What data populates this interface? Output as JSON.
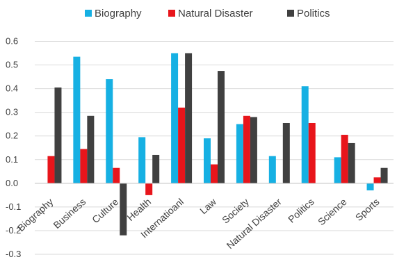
{
  "chart_data": {
    "type": "bar",
    "title": "",
    "xlabel": "",
    "ylabel": "",
    "categories": [
      "Biography",
      "Business",
      "Culture",
      "Health",
      "Internatioanl",
      "Law",
      "Society",
      "Natural Disaster",
      "Politics",
      "Science",
      "Sports"
    ],
    "series": [
      {
        "name": "Biography",
        "color": "#16b0e3",
        "values": [
          0.0,
          0.535,
          0.44,
          0.195,
          0.55,
          0.19,
          0.25,
          0.115,
          0.41,
          0.11,
          -0.03
        ]
      },
      {
        "name": "Natural Disaster",
        "color": "#e8151b",
        "values": [
          0.115,
          0.145,
          0.065,
          -0.05,
          0.32,
          0.08,
          0.285,
          0.0,
          0.255,
          0.205,
          0.025
        ]
      },
      {
        "name": "Politics",
        "color": "#404040",
        "values": [
          0.405,
          0.285,
          -0.22,
          0.12,
          0.55,
          0.475,
          0.28,
          0.255,
          0.0,
          0.17,
          0.065
        ]
      }
    ],
    "ylim": [
      -0.3,
      0.6
    ],
    "yticks": [
      "-0.3",
      "-0.2",
      "-0.1",
      "0.0",
      "0.1",
      "0.2",
      "0.3",
      "0.4",
      "0.5",
      "0.6"
    ],
    "grid": true,
    "legend_position": "top"
  }
}
